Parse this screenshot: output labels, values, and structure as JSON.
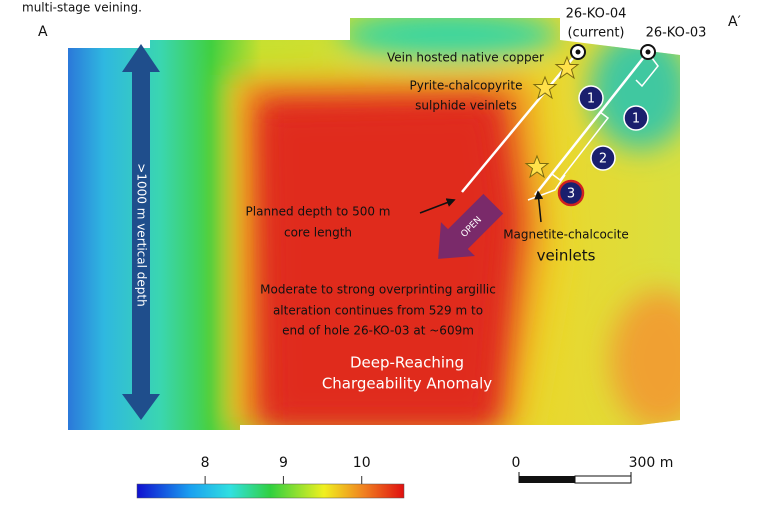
{
  "caption_fragment": "multi-stage veining.",
  "section_ends": {
    "left": "A",
    "right": "A′"
  },
  "drill_holes": [
    {
      "name": "26-KO-04",
      "note": "(current)"
    },
    {
      "name": "26-KO-03"
    }
  ],
  "annotations": {
    "native_copper": "Vein hosted native copper",
    "pyrite": [
      "Pyrite-chalcopyrite",
      "sulphide veinlets"
    ],
    "planned_depth": [
      "Planned depth to 500 m",
      "core length"
    ],
    "magnetite": [
      "Magnetite-chalcocite",
      "veinlets"
    ],
    "argillic": [
      "Moderate to strong overprinting argillic",
      "alteration continues from 529 m to",
      "end of hole 26-KO-03 at ~609m"
    ],
    "anomaly": [
      "Deep-Reaching",
      "Chargeability Anomaly"
    ],
    "open": "OPEN",
    "vertical_depth": ">1000 m vertical depth"
  },
  "zone_markers": [
    "1",
    "1",
    "2",
    "3"
  ],
  "colorbar": {
    "lim": [
      7.13,
      10.54
    ],
    "ticks": [
      8,
      9,
      10
    ]
  },
  "scale_bar": {
    "lim": [
      0,
      300
    ],
    "ticks": [
      0,
      {
        "value": 300,
        "label": "300 m"
      }
    ]
  }
}
